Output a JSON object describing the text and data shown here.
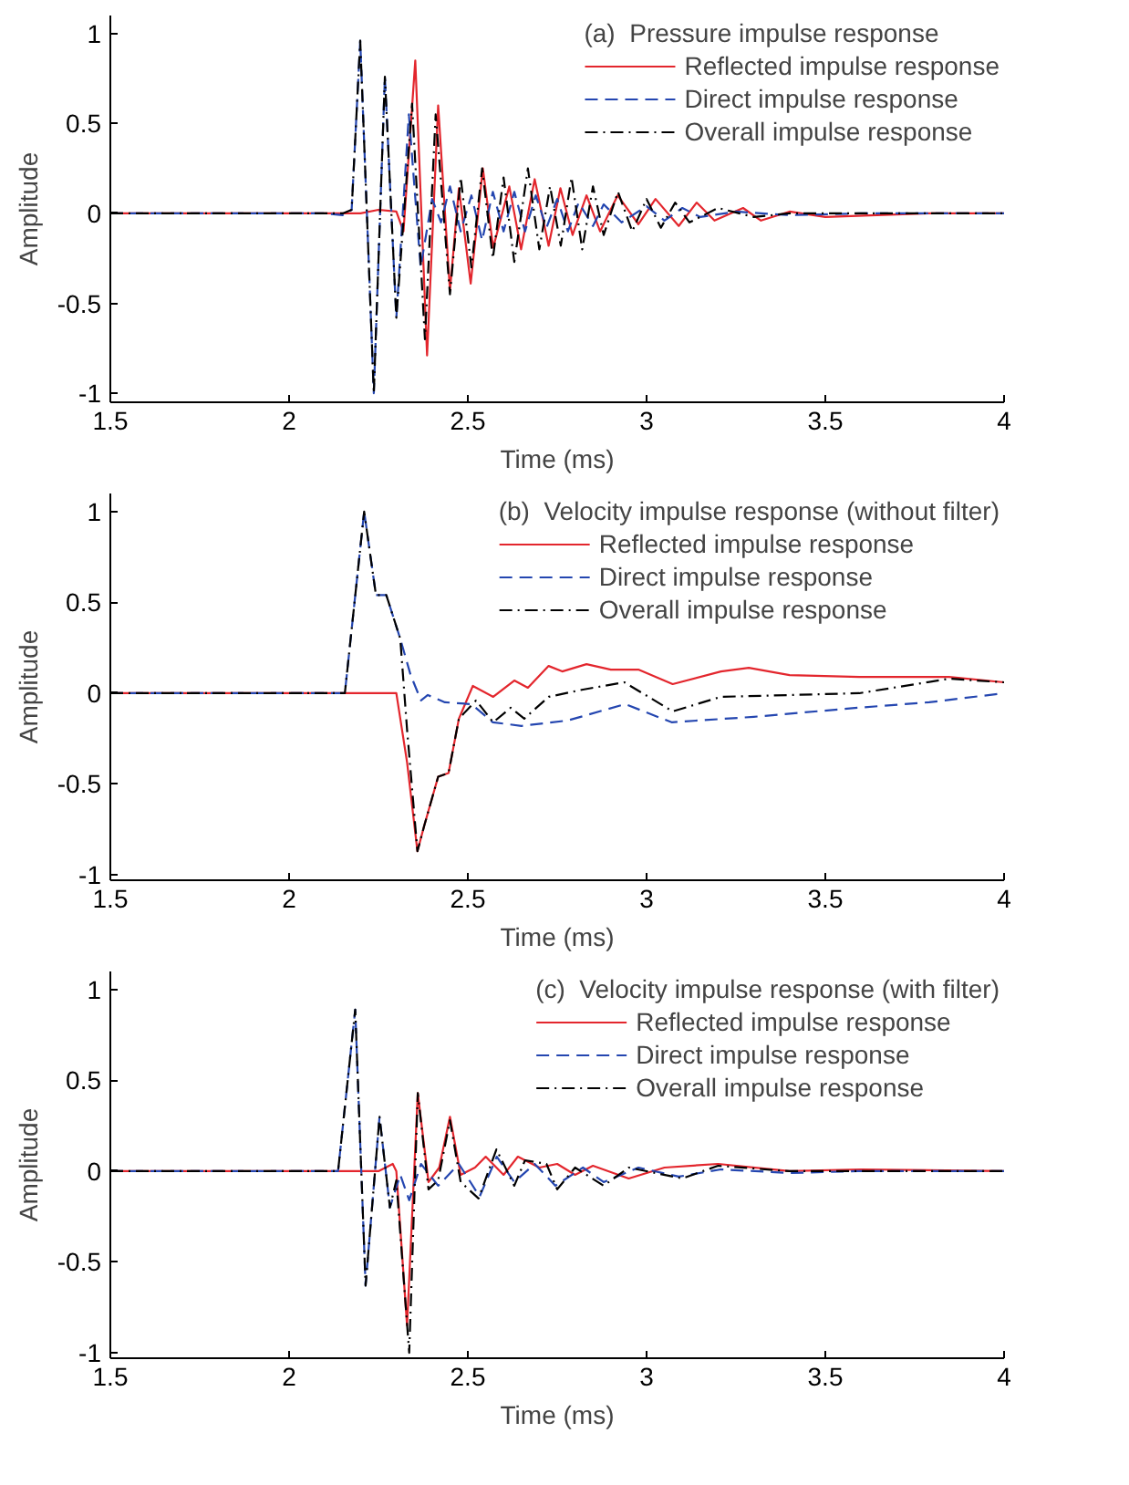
{
  "chart_data": [
    {
      "type": "line",
      "legend_title": "(a)  Pressure impulse response",
      "xlabel": "Time (ms)",
      "ylabel": "Amplitude",
      "xlim": [
        1.5,
        4
      ],
      "ylim": [
        -1.05,
        1.1
      ],
      "xticks": [
        1.5,
        2,
        2.5,
        3,
        3.5,
        4
      ],
      "yticks": [
        -1,
        -0.5,
        0,
        0.5,
        1
      ],
      "grid": false,
      "legend": "top right",
      "series": [
        {
          "name": "Reflected impulse response",
          "color": "#e3262d",
          "line_style": "solid",
          "x": [
            1.5,
            2.2,
            2.25,
            2.3,
            2.32,
            2.353,
            2.386,
            2.417,
            2.45,
            2.475,
            2.508,
            2.542,
            2.571,
            2.616,
            2.649,
            2.687,
            2.726,
            2.759,
            2.793,
            2.832,
            2.87,
            2.919,
            2.977,
            3.025,
            3.09,
            3.14,
            3.19,
            3.27,
            3.32,
            3.4,
            3.5,
            3.79,
            4
          ],
          "values": [
            0,
            0,
            0.02,
            0.01,
            -0.1,
            0.85,
            -0.79,
            0.6,
            -0.43,
            0.14,
            -0.39,
            0.25,
            -0.19,
            0.15,
            -0.2,
            0.19,
            -0.18,
            0.14,
            -0.12,
            0.1,
            -0.1,
            0.1,
            -0.06,
            0.08,
            -0.07,
            0.06,
            -0.04,
            0.03,
            -0.04,
            0.01,
            -0.02,
            0,
            0
          ]
        },
        {
          "name": "Direct impulse response",
          "color": "#2446b0",
          "line_style": "dashed",
          "x": [
            1.5,
            2.1,
            2.15,
            2.175,
            2.199,
            2.237,
            2.268,
            2.3,
            2.335,
            2.368,
            2.4,
            2.425,
            2.45,
            2.48,
            2.51,
            2.54,
            2.57,
            2.6,
            2.63,
            2.66,
            2.69,
            2.72,
            2.75,
            2.78,
            2.81,
            2.85,
            2.88,
            2.93,
            3,
            3.05,
            3.1,
            3.15,
            3.25,
            3.4,
            3.6,
            4
          ],
          "values": [
            0,
            0,
            -0.01,
            0.02,
            0.96,
            -1.0,
            0.76,
            -0.58,
            0.55,
            -0.3,
            0.08,
            -0.05,
            0.15,
            -0.1,
            0.1,
            -0.15,
            0.12,
            -0.1,
            0.12,
            -0.1,
            0.1,
            -0.08,
            0.08,
            -0.1,
            0.06,
            -0.07,
            0.05,
            -0.05,
            0.04,
            -0.04,
            0.03,
            -0.02,
            0.01,
            -0.01,
            0,
            0
          ]
        },
        {
          "name": "Overall impulse response",
          "color": "#000000",
          "line_style": "dashdot",
          "x": [
            1.5,
            2.15,
            2.175,
            2.199,
            2.237,
            2.268,
            2.3,
            2.344,
            2.38,
            2.41,
            2.45,
            2.48,
            2.51,
            2.54,
            2.57,
            2.6,
            2.63,
            2.668,
            2.7,
            2.73,
            2.76,
            2.79,
            2.82,
            2.85,
            2.88,
            2.92,
            2.96,
            3,
            3.04,
            3.08,
            3.12,
            3.2,
            3.3,
            3.4,
            4
          ],
          "values": [
            0,
            0,
            0.02,
            0.96,
            -1.0,
            0.76,
            -0.58,
            0.61,
            -0.7,
            0.55,
            -0.45,
            0.2,
            -0.3,
            0.25,
            -0.25,
            0.2,
            -0.27,
            0.25,
            -0.2,
            0.15,
            -0.18,
            0.2,
            -0.2,
            0.15,
            -0.12,
            0.12,
            -0.1,
            0.08,
            -0.08,
            0.06,
            -0.05,
            0.03,
            -0.02,
            0,
            0
          ]
        }
      ]
    },
    {
      "type": "line",
      "legend_title": "(b)  Velocity impulse response (without filter)",
      "xlabel": "Time (ms)",
      "ylabel": "Amplitude",
      "xlim": [
        1.5,
        4
      ],
      "ylim": [
        -1.03,
        1.1
      ],
      "xticks": [
        1.5,
        2,
        2.5,
        3,
        3.5,
        4
      ],
      "yticks": [
        -1,
        -0.5,
        0,
        0.5,
        1
      ],
      "grid": false,
      "legend": "top right",
      "series": [
        {
          "name": "Reflected impulse response",
          "color": "#e3262d",
          "line_style": "solid",
          "x": [
            1.5,
            2.3,
            2.33,
            2.359,
            2.378,
            2.417,
            2.446,
            2.475,
            2.514,
            2.571,
            2.63,
            2.668,
            2.726,
            2.764,
            2.832,
            2.9,
            2.977,
            3.073,
            3.208,
            3.286,
            3.4,
            3.595,
            3.846,
            4
          ],
          "values": [
            0,
            0,
            -0.38,
            -0.87,
            -0.73,
            -0.46,
            -0.44,
            -0.14,
            0.04,
            -0.02,
            0.07,
            0.03,
            0.15,
            0.12,
            0.16,
            0.13,
            0.13,
            0.05,
            0.12,
            0.14,
            0.1,
            0.09,
            0.09,
            0.06
          ]
        },
        {
          "name": "Direct impulse response",
          "color": "#2446b0",
          "line_style": "dashed",
          "x": [
            1.5,
            2.156,
            2.21,
            2.243,
            2.272,
            2.311,
            2.34,
            2.369,
            2.388,
            2.436,
            2.51,
            2.57,
            2.65,
            2.78,
            2.94,
            3.07,
            3.3,
            3.59,
            3.79,
            4
          ],
          "values": [
            0,
            0,
            1.0,
            0.54,
            0.54,
            0.3,
            0.1,
            -0.04,
            -0.01,
            -0.05,
            -0.06,
            -0.16,
            -0.18,
            -0.15,
            -0.06,
            -0.16,
            -0.13,
            -0.08,
            -0.05,
            0
          ]
        },
        {
          "name": "Overall impulse response",
          "color": "#000000",
          "line_style": "dashdot",
          "x": [
            1.5,
            2.156,
            2.21,
            2.243,
            2.272,
            2.311,
            2.33,
            2.359,
            2.378,
            2.417,
            2.446,
            2.475,
            2.523,
            2.571,
            2.62,
            2.658,
            2.726,
            2.822,
            2.938,
            3.073,
            3.208,
            3.4,
            3.595,
            3.846,
            4
          ],
          "values": [
            0,
            0,
            1.0,
            0.54,
            0.54,
            0.3,
            -0.2,
            -0.87,
            -0.73,
            -0.46,
            -0.44,
            -0.14,
            -0.04,
            -0.16,
            -0.08,
            -0.14,
            -0.02,
            0.02,
            0.06,
            -0.1,
            -0.02,
            -0.01,
            0,
            0.08,
            0.06
          ]
        }
      ]
    },
    {
      "type": "line",
      "legend_title": "(c)  Velocity impulse response (with filter)",
      "xlabel": "Time (ms)",
      "ylabel": "Amplitude",
      "xlim": [
        1.5,
        4
      ],
      "ylim": [
        -1.03,
        1.1
      ],
      "xticks": [
        1.5,
        2,
        2.5,
        3,
        3.5,
        4
      ],
      "yticks": [
        -1,
        -0.5,
        0,
        0.5,
        1
      ],
      "grid": false,
      "legend": "top right",
      "series": [
        {
          "name": "Reflected impulse response",
          "color": "#e3262d",
          "line_style": "solid",
          "x": [
            1.5,
            2.25,
            2.29,
            2.3,
            2.33,
            2.36,
            2.39,
            2.42,
            2.45,
            2.48,
            2.52,
            2.55,
            2.6,
            2.64,
            2.7,
            2.75,
            2.8,
            2.85,
            2.95,
            3.05,
            3.2,
            3.4,
            3.6,
            4
          ],
          "values": [
            0,
            0,
            0.04,
            0,
            -0.85,
            0.43,
            -0.06,
            0.02,
            0.3,
            -0.02,
            0.02,
            0.08,
            -0.02,
            0.08,
            0.02,
            0.04,
            -0.02,
            0.03,
            -0.04,
            0.02,
            0.04,
            0,
            0.01,
            0
          ]
        },
        {
          "name": "Direct impulse response",
          "color": "#2446b0",
          "line_style": "dashed",
          "x": [
            1.5,
            2.137,
            2.185,
            2.214,
            2.253,
            2.282,
            2.311,
            2.336,
            2.369,
            2.417,
            2.475,
            2.533,
            2.581,
            2.63,
            2.687,
            2.745,
            2.822,
            2.88,
            2.977,
            3.09,
            3.208,
            3.4,
            3.59,
            4
          ],
          "values": [
            0,
            0,
            0.89,
            -0.63,
            0.3,
            -0.2,
            -0.02,
            -0.16,
            0.04,
            -0.08,
            0.04,
            -0.14,
            0.08,
            -0.06,
            0.04,
            -0.08,
            0.02,
            -0.06,
            0.02,
            -0.03,
            0.01,
            -0.01,
            0,
            0
          ]
        },
        {
          "name": "Overall impulse response",
          "color": "#000000",
          "line_style": "dashdot",
          "x": [
            1.5,
            2.137,
            2.185,
            2.214,
            2.253,
            2.282,
            2.3,
            2.336,
            2.36,
            2.39,
            2.417,
            2.45,
            2.48,
            2.53,
            2.58,
            2.63,
            2.66,
            2.72,
            2.75,
            2.8,
            2.88,
            2.95,
            3.1,
            3.2,
            3.4,
            4
          ],
          "values": [
            0,
            0,
            0.89,
            -0.63,
            0.3,
            -0.2,
            -0.05,
            -1.0,
            0.43,
            -0.1,
            -0.05,
            0.28,
            -0.06,
            -0.15,
            0.12,
            -0.08,
            0.06,
            0.04,
            -0.1,
            0.02,
            -0.08,
            0.02,
            -0.04,
            0.03,
            0,
            0
          ]
        }
      ]
    }
  ]
}
